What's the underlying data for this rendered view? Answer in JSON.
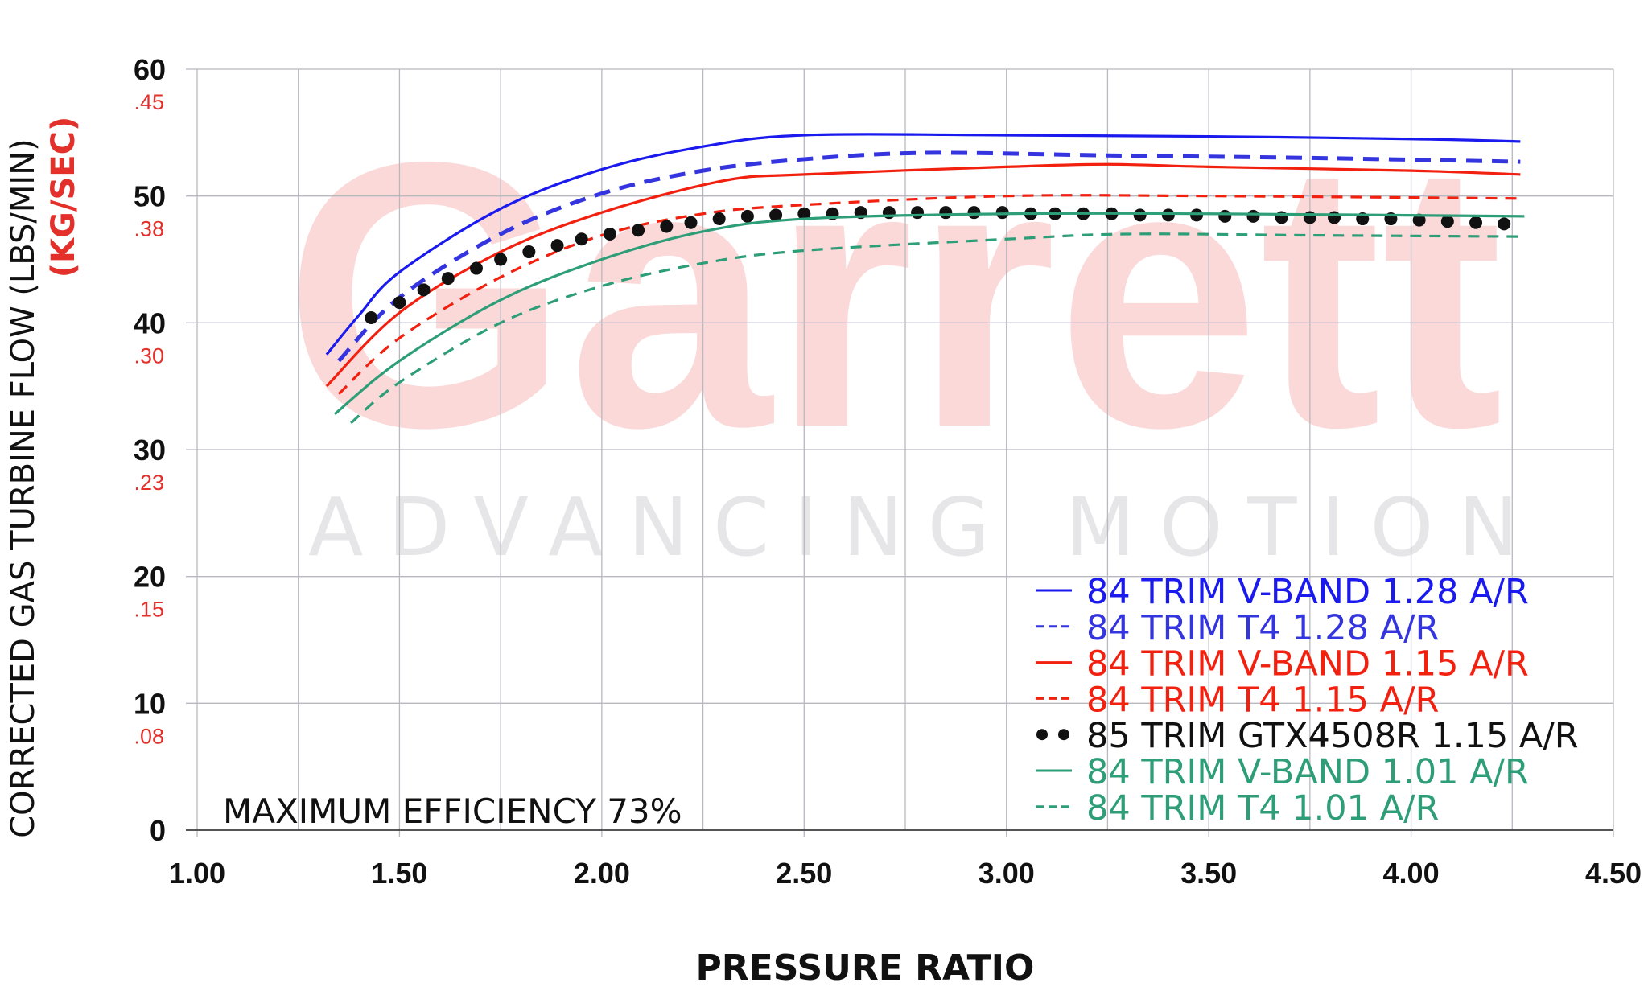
{
  "chart_data": {
    "type": "line",
    "xlabel": "PRESSURE RATIO",
    "ylabel": "CORRECTED GAS TURBINE FLOW (LBS/MIN)",
    "ylabel_secondary": "(KG/SEC)",
    "xlim": [
      1.0,
      4.5
    ],
    "ylim": [
      0,
      60
    ],
    "x_ticks": [
      "1.00",
      "1.50",
      "2.00",
      "2.50",
      "3.00",
      "3.50",
      "4.00",
      "4.50"
    ],
    "y_ticks": [
      "0",
      "10",
      "20",
      "30",
      "40",
      "50",
      "60"
    ],
    "y_ticks_secondary": [
      ".08",
      ".15",
      ".23",
      ".30",
      ".38",
      ".45"
    ],
    "grid": true,
    "legend_position": "bottom-right",
    "annotation": "MAXIMUM EFFICIENCY 73%",
    "watermark": {
      "brand": "Garrett",
      "tagline": "ADVANCING MOTION"
    },
    "series": [
      {
        "name": "84 TRIM V-BAND 1.28 A/R",
        "style": "solid",
        "color": "#1a1aee",
        "points": [
          [
            1.32,
            37.5
          ],
          [
            1.4,
            40.6
          ],
          [
            1.5,
            44.0
          ],
          [
            1.75,
            49.0
          ],
          [
            2.0,
            52.1
          ],
          [
            2.25,
            53.9
          ],
          [
            2.5,
            54.8
          ],
          [
            3.0,
            54.8
          ],
          [
            3.5,
            54.7
          ],
          [
            4.0,
            54.5
          ],
          [
            4.27,
            54.3
          ]
        ]
      },
      {
        "name": "84 TRIM T4 1.28 A/R",
        "style": "dashed",
        "color": "#3535e0",
        "points": [
          [
            1.35,
            37.0
          ],
          [
            1.5,
            42.0
          ],
          [
            1.75,
            47.0
          ],
          [
            2.0,
            50.2
          ],
          [
            2.25,
            52.0
          ],
          [
            2.5,
            52.9
          ],
          [
            2.8,
            53.4
          ],
          [
            3.25,
            53.2
          ],
          [
            3.75,
            53.0
          ],
          [
            4.27,
            52.7
          ]
        ]
      },
      {
        "name": "84 TRIM V-BAND 1.15 A/R",
        "style": "solid",
        "color": "#f2200f",
        "points": [
          [
            1.32,
            35.0
          ],
          [
            1.5,
            40.8
          ],
          [
            1.75,
            45.6
          ],
          [
            2.0,
            48.7
          ],
          [
            2.3,
            51.2
          ],
          [
            2.5,
            51.7
          ],
          [
            3.0,
            52.3
          ],
          [
            3.25,
            52.5
          ],
          [
            3.5,
            52.3
          ],
          [
            4.0,
            52.0
          ],
          [
            4.27,
            51.7
          ]
        ]
      },
      {
        "name": "84 TRIM T4 1.15 A/R",
        "style": "dashed",
        "color": "#f2200f",
        "points": [
          [
            1.35,
            34.4
          ],
          [
            1.5,
            38.8
          ],
          [
            1.75,
            43.6
          ],
          [
            2.0,
            46.9
          ],
          [
            2.25,
            48.6
          ],
          [
            2.5,
            49.3
          ],
          [
            3.0,
            50.0
          ],
          [
            3.5,
            50.0
          ],
          [
            4.27,
            49.8
          ]
        ]
      },
      {
        "name": "85 TRIM GTX4508R 1.15 A/R",
        "style": "dots",
        "color": "#111111",
        "points": [
          [
            1.43,
            40.4
          ],
          [
            1.5,
            41.6
          ],
          [
            1.56,
            42.6
          ],
          [
            1.62,
            43.5
          ],
          [
            1.69,
            44.3
          ],
          [
            1.75,
            45.0
          ],
          [
            1.82,
            45.6
          ],
          [
            1.89,
            46.1
          ],
          [
            1.95,
            46.6
          ],
          [
            2.02,
            47.0
          ],
          [
            2.09,
            47.3
          ],
          [
            2.16,
            47.6
          ],
          [
            2.22,
            47.9
          ],
          [
            2.29,
            48.2
          ],
          [
            2.36,
            48.4
          ],
          [
            2.43,
            48.5
          ],
          [
            2.5,
            48.6
          ],
          [
            2.57,
            48.6
          ],
          [
            2.64,
            48.7
          ],
          [
            2.71,
            48.7
          ],
          [
            2.78,
            48.7
          ],
          [
            2.85,
            48.7
          ],
          [
            2.92,
            48.7
          ],
          [
            2.99,
            48.7
          ],
          [
            3.06,
            48.6
          ],
          [
            3.12,
            48.6
          ],
          [
            3.19,
            48.6
          ],
          [
            3.26,
            48.6
          ],
          [
            3.33,
            48.5
          ],
          [
            3.4,
            48.5
          ],
          [
            3.47,
            48.5
          ],
          [
            3.54,
            48.4
          ],
          [
            3.61,
            48.4
          ],
          [
            3.68,
            48.3
          ],
          [
            3.75,
            48.3
          ],
          [
            3.81,
            48.3
          ],
          [
            3.88,
            48.2
          ],
          [
            3.95,
            48.2
          ],
          [
            4.02,
            48.1
          ],
          [
            4.09,
            48.0
          ],
          [
            4.16,
            47.9
          ],
          [
            4.23,
            47.8
          ]
        ]
      },
      {
        "name": "84 TRIM V-BAND 1.01 A/R",
        "style": "solid",
        "color": "#2e9e78",
        "points": [
          [
            1.34,
            32.8
          ],
          [
            1.5,
            37.0
          ],
          [
            1.75,
            41.8
          ],
          [
            2.0,
            45.0
          ],
          [
            2.25,
            47.2
          ],
          [
            2.5,
            48.2
          ],
          [
            3.0,
            48.6
          ],
          [
            3.5,
            48.6
          ],
          [
            4.28,
            48.4
          ]
        ]
      },
      {
        "name": "84 TRIM T4 1.01 A/R",
        "style": "dashed",
        "color": "#2e9e78",
        "points": [
          [
            1.38,
            32.1
          ],
          [
            1.5,
            35.3
          ],
          [
            1.75,
            40.0
          ],
          [
            2.0,
            42.9
          ],
          [
            2.25,
            44.7
          ],
          [
            2.5,
            45.7
          ],
          [
            3.0,
            46.6
          ],
          [
            3.3,
            47.0
          ],
          [
            3.75,
            46.9
          ],
          [
            4.27,
            46.8
          ]
        ]
      }
    ]
  }
}
